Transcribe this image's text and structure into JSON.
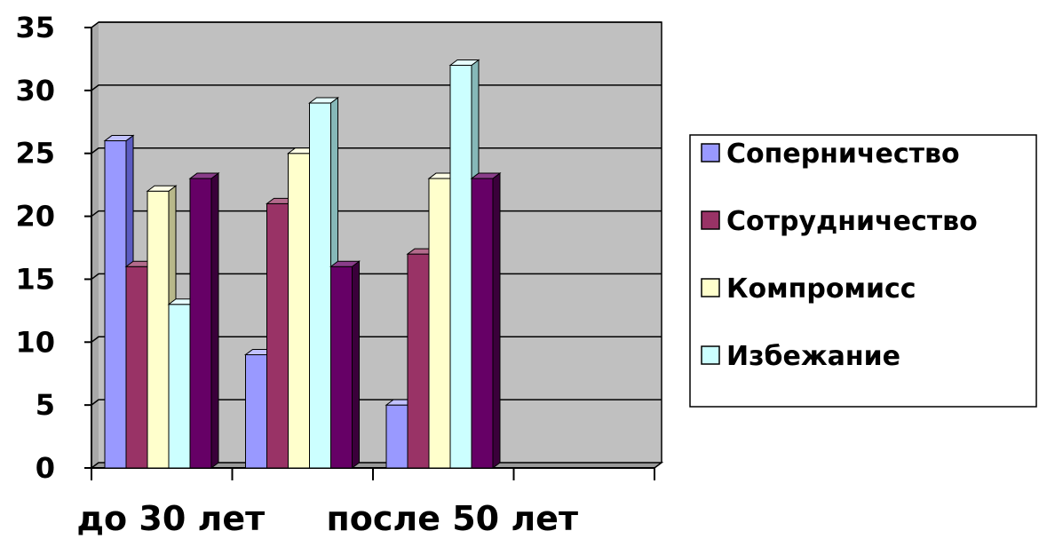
{
  "chart_data": {
    "type": "bar",
    "categories": [
      "до 30 лет",
      "",
      "после 50 лет",
      ""
    ],
    "series": [
      {
        "name": "Соперничество",
        "values": [
          26,
          9,
          5,
          null
        ]
      },
      {
        "name": "Сотрудничество",
        "values": [
          16,
          21,
          17,
          null
        ]
      },
      {
        "name": "Компромисс",
        "values": [
          22,
          25,
          23,
          null
        ]
      },
      {
        "name": "Избежание",
        "values": [
          13,
          29,
          32,
          null
        ]
      },
      {
        "name": "",
        "values": [
          23,
          16,
          23,
          null
        ]
      }
    ],
    "y_ticks": [
      "0",
      "5",
      "10",
      "15",
      "20",
      "25",
      "30",
      "35"
    ],
    "ylim": [
      0,
      35
    ],
    "grid": true,
    "legend_position": "right",
    "colors": {
      "series": [
        "#9999ff",
        "#993366",
        "#ffffcc",
        "#ccffff",
        "#660066"
      ],
      "series_side": [
        "#5c5cc2",
        "#5e1f3f",
        "#b8b88a",
        "#86b8b8",
        "#3a003a"
      ],
      "series_top": [
        "#c2c2ff",
        "#b36b8c",
        "#ffffe6",
        "#e6ffff",
        "#8a3d8a"
      ],
      "wall": "#c0c0c0",
      "wall_edge": "#000000",
      "grid": "#000000",
      "legend_border": "#000000"
    }
  }
}
